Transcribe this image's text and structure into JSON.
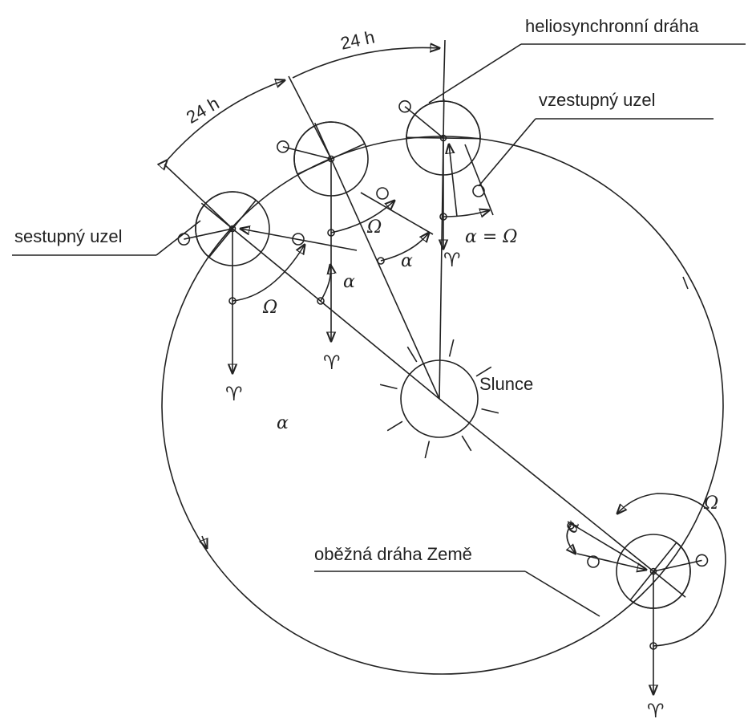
{
  "labels": {
    "heliosynchronous_orbit": "heliosynchronní dráha",
    "interval_1": "24 h",
    "interval_2": "24 h",
    "ascending_node": "vzestupný uzel",
    "descending_node": "sestupný uzel",
    "sun": "Slunce",
    "earth_orbit": "oběžná dráha Země",
    "alpha_equals_omega": "α = Ω",
    "omega": [
      "Ω",
      "Ω",
      "Ω"
    ],
    "alpha": [
      "α",
      "α",
      "α",
      "α"
    ],
    "aries": [
      "♈",
      "♈",
      "♈",
      "♈"
    ]
  }
}
